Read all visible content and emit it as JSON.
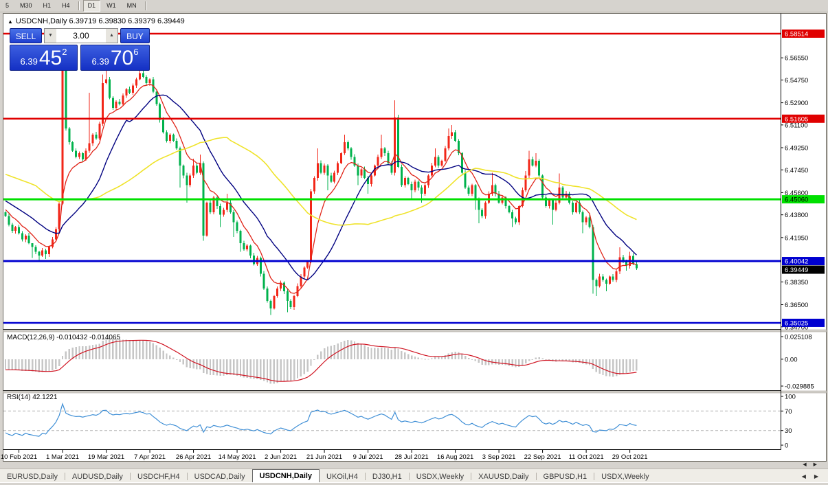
{
  "toolbar": {
    "timeframes": [
      {
        "label": "5",
        "active": false
      },
      {
        "label": "M30",
        "active": false
      },
      {
        "label": "H1",
        "active": false
      },
      {
        "label": "H4",
        "active": false
      },
      {
        "label": "D1",
        "active": true
      },
      {
        "label": "W1",
        "active": false
      },
      {
        "label": "MN",
        "active": false
      }
    ]
  },
  "chart": {
    "marker": "▲",
    "title_text": "USDCNH,Daily  6.39719 6.39830 6.39379 6.39449"
  },
  "trade_panel": {
    "sell_label": "SELL",
    "buy_label": "BUY",
    "volume": "3.00",
    "dec_icon": "▼",
    "inc_icon": "▲",
    "sell_small": "6.39",
    "sell_big": "45",
    "sell_sup": "2",
    "buy_small": "6.39",
    "buy_big": "70",
    "buy_sup": "6"
  },
  "scrollbar": {
    "left_arrow": "◀",
    "right_arrow": "▶"
  },
  "tabbar": {
    "tabs": [
      {
        "label": "EURUSD,Daily",
        "active": false
      },
      {
        "label": "AUDUSD,Daily",
        "active": false
      },
      {
        "label": "USDCHF,H4",
        "active": false
      },
      {
        "label": "USDCAD,Daily",
        "active": false
      },
      {
        "label": "USDCNH,Daily",
        "active": true
      },
      {
        "label": "UKOil,H4",
        "active": false
      },
      {
        "label": "DJ30,H1",
        "active": false
      },
      {
        "label": "USDX,Weekly",
        "active": false
      },
      {
        "label": "XAUUSD,Daily",
        "active": false
      },
      {
        "label": "GBPUSD,H1",
        "active": false
      },
      {
        "label": "USDX,Weekly",
        "active": false
      }
    ],
    "left_arrow": "◀",
    "right_arrow": "▶"
  },
  "chart_data": {
    "type": "candlestick",
    "symbol": "USDCNH",
    "timeframe": "Daily",
    "title_ohlc": {
      "open": 6.39719,
      "high": 6.3983,
      "low": 6.39379,
      "close": 6.39449
    },
    "x_tick_labels": [
      "10 Feb 2021",
      "1 Mar 2021",
      "19 Mar 2021",
      "7 Apr 2021",
      "26 Apr 2021",
      "14 May 2021",
      "2 Jun 2021",
      "21 Jun 2021",
      "9 Jul 2021",
      "28 Jul 2021",
      "16 Aug 2021",
      "3 Sep 2021",
      "22 Sep 2021",
      "11 Oct 2021",
      "29 Oct 2021"
    ],
    "x_label_start_index": 4,
    "x_label_step": 13,
    "candle_up_color": "#f22618",
    "candle_down_color": "#00b24c",
    "pre_closes": [
      6.52,
      6.515,
      6.518,
      6.51,
      6.505,
      6.508,
      6.5,
      6.495,
      6.498,
      6.492,
      6.488,
      6.49,
      6.484,
      6.48,
      6.483,
      6.478,
      6.474,
      6.476,
      6.47,
      6.466,
      6.469,
      6.463,
      6.46,
      6.462,
      6.457,
      6.454,
      6.456,
      6.452,
      6.45,
      6.453,
      6.448,
      6.446,
      6.449,
      6.445,
      6.443,
      6.446,
      6.442,
      6.44,
      6.443,
      6.44
    ],
    "closes": [
      6.437,
      6.43,
      6.425,
      6.428,
      6.423,
      6.418,
      6.421,
      6.415,
      6.412,
      6.408,
      6.405,
      6.409,
      6.406,
      6.412,
      6.418,
      6.4265,
      6.447,
      6.5565,
      6.508,
      6.497,
      6.49,
      6.485,
      6.488,
      6.483,
      6.49,
      6.496,
      6.503,
      6.5,
      6.512,
      6.545,
      6.548,
      6.533,
      6.525,
      6.53,
      6.528,
      6.535,
      6.54,
      6.537,
      6.543,
      6.548,
      6.553,
      6.55,
      6.545,
      6.548,
      6.538,
      6.528,
      6.515,
      6.505,
      6.498,
      6.503,
      6.498,
      6.492,
      6.478,
      6.47,
      6.462,
      6.47,
      6.478,
      6.472,
      6.48,
      6.421,
      6.448,
      6.44,
      6.452,
      6.445,
      6.438,
      6.442,
      6.448,
      6.44,
      6.432,
      6.425,
      6.415,
      6.41,
      6.413,
      6.405,
      6.398,
      6.403,
      6.39,
      6.378,
      6.368,
      6.362,
      6.372,
      6.378,
      6.383,
      6.376,
      6.368,
      6.363,
      6.372,
      6.38,
      6.388,
      6.395,
      6.4,
      6.457,
      6.468,
      6.48,
      6.472,
      6.478,
      6.47,
      6.465,
      6.472,
      6.48,
      6.488,
      6.497,
      6.492,
      6.485,
      6.478,
      6.47,
      6.475,
      6.468,
      6.463,
      6.47,
      6.478,
      6.485,
      6.492,
      6.488,
      6.48,
      6.472,
      6.517,
      6.477,
      6.462,
      6.468,
      6.463,
      6.458,
      6.465,
      6.46,
      6.455,
      6.462,
      6.47,
      6.478,
      6.485,
      6.478,
      6.482,
      6.492,
      6.502,
      6.505,
      6.498,
      6.488,
      6.472,
      6.46,
      6.455,
      6.462,
      6.45,
      6.442,
      6.437,
      6.448,
      6.455,
      6.462,
      6.455,
      6.448,
      6.452,
      6.445,
      6.44,
      6.435,
      6.432,
      6.445,
      6.458,
      6.47,
      6.483,
      6.478,
      6.482,
      6.47,
      6.452,
      6.445,
      6.45,
      6.442,
      6.448,
      6.46,
      6.452,
      6.455,
      6.448,
      6.44,
      6.448,
      6.44,
      6.432,
      6.436,
      6.428,
      6.385,
      6.38,
      6.388,
      6.385,
      6.382,
      6.388,
      6.385,
      6.392,
      6.4035,
      6.4,
      6.3965,
      6.4045,
      6.398,
      6.3945
    ],
    "wick_default": 0.0016,
    "wick_overrides": {
      "8": [
        6.4145,
        6.403
      ],
      "10": [
        null,
        6.401
      ],
      "12": [
        null,
        6.402
      ],
      "17": [
        6.5585,
        null
      ],
      "18": [
        6.5585,
        null
      ],
      "25": [
        6.537,
        null
      ],
      "29": [
        6.552,
        null
      ],
      "30": [
        6.556,
        null
      ],
      "40": [
        6.558,
        null
      ],
      "52": [
        null,
        6.46
      ],
      "54": [
        null,
        6.448
      ],
      "56": [
        6.4835,
        null
      ],
      "58": [
        6.487,
        null
      ],
      "59": [
        null,
        6.417
      ],
      "64": [
        null,
        6.428
      ],
      "66": [
        6.455,
        null
      ],
      "68": [
        null,
        6.42
      ],
      "70": [
        null,
        6.408
      ],
      "79": [
        null,
        6.3565
      ],
      "84": [
        null,
        6.359
      ],
      "93": [
        6.492,
        null
      ],
      "96": [
        null,
        6.458
      ],
      "101": [
        6.503,
        null
      ],
      "105": [
        null,
        6.462
      ],
      "108": [
        null,
        6.455
      ],
      "112": [
        6.503,
        null
      ],
      "116": [
        6.531,
        null
      ],
      "121": [
        null,
        6.45
      ],
      "124": [
        null,
        6.448
      ],
      "128": [
        6.492,
        null
      ],
      "132": [
        6.508,
        null
      ],
      "133": [
        6.511,
        null
      ],
      "140": [
        null,
        6.442
      ],
      "141": [
        null,
        6.431
      ],
      "145": [
        6.472,
        null
      ],
      "151": [
        null,
        6.428
      ],
      "155": [
        6.4735,
        null
      ],
      "156": [
        6.49,
        null
      ],
      "158": [
        6.488,
        null
      ],
      "163": [
        null,
        6.43
      ],
      "165": [
        6.4715,
        null
      ],
      "172": [
        null,
        6.423
      ],
      "175": [
        null,
        6.374
      ],
      "176": [
        null,
        6.372
      ],
      "179": [
        null,
        6.376
      ],
      "183": [
        6.4115,
        null
      ],
      "185": [
        null,
        6.3925
      ],
      "186": [
        6.408,
        null
      ]
    },
    "price_axis": {
      "plain_labels": [
        "6.56550",
        "6.54750",
        "6.52900",
        "6.51100",
        "6.49250",
        "6.47450",
        "6.45600",
        "6.43800",
        "6.41950",
        "6.38350",
        "6.36500",
        "6.34700"
      ],
      "plain_values": [
        6.5655,
        6.5475,
        6.529,
        6.511,
        6.4925,
        6.4745,
        6.456,
        6.438,
        6.4195,
        6.3835,
        6.365,
        6.347
      ],
      "max_visible": 6.6013,
      "min_visible": 6.3452
    },
    "levels": [
      {
        "price": 6.58514,
        "label": "6.58514",
        "color": "#e00000",
        "tag_fg": "#ffffff",
        "width": 2.5
      },
      {
        "price": 6.51605,
        "label": "6.51605",
        "color": "#e00000",
        "tag_fg": "#ffffff",
        "width": 2.5
      },
      {
        "price": 6.4506,
        "label": "6.45060",
        "color": "#00e000",
        "tag_fg": "#000000",
        "width": 3
      },
      {
        "price": 6.40042,
        "label": "6.40042",
        "color": "#0000d0",
        "tag_fg": "#ffffff",
        "width": 3
      },
      {
        "price": 6.35025,
        "label": "6.35025",
        "color": "#0000d0",
        "tag_fg": "#ffffff",
        "width": 2.5
      }
    ],
    "current_price": {
      "value": 6.39449,
      "label": "6.39449",
      "bg": "#000000",
      "fg": "#ffffff"
    },
    "ma_lines": [
      {
        "name": "fast-ma",
        "method": "ema",
        "period": 8,
        "color": "#e02418",
        "width": 1.3
      },
      {
        "name": "mid-ma",
        "method": "sma",
        "period": 20,
        "color": "#000080",
        "width": 1.4
      },
      {
        "name": "slow-ma",
        "method": "sma",
        "period": 50,
        "color": "#efe32a",
        "width": 1.6
      }
    ],
    "macd": {
      "label": "MACD(12,26,9)",
      "values_text": "-0.010432 -0.014065",
      "fast": 12,
      "slow": 26,
      "signal_period": 9,
      "scale_labels": [
        "0.025108",
        "0.00",
        "-0.029885"
      ],
      "scale_values": [
        0.025108,
        0,
        -0.029885
      ],
      "histogram_color": "#c6c6c6",
      "signal_color": "#d01422"
    },
    "rsi": {
      "label": "RSI(14)",
      "value_text": "42.1221",
      "period": 14,
      "levels": [
        70,
        30
      ],
      "scale_labels": [
        "100",
        "70",
        "30",
        "0"
      ],
      "scale_values": [
        100,
        70,
        30,
        0
      ],
      "line_color": "#3f8fd6"
    }
  }
}
